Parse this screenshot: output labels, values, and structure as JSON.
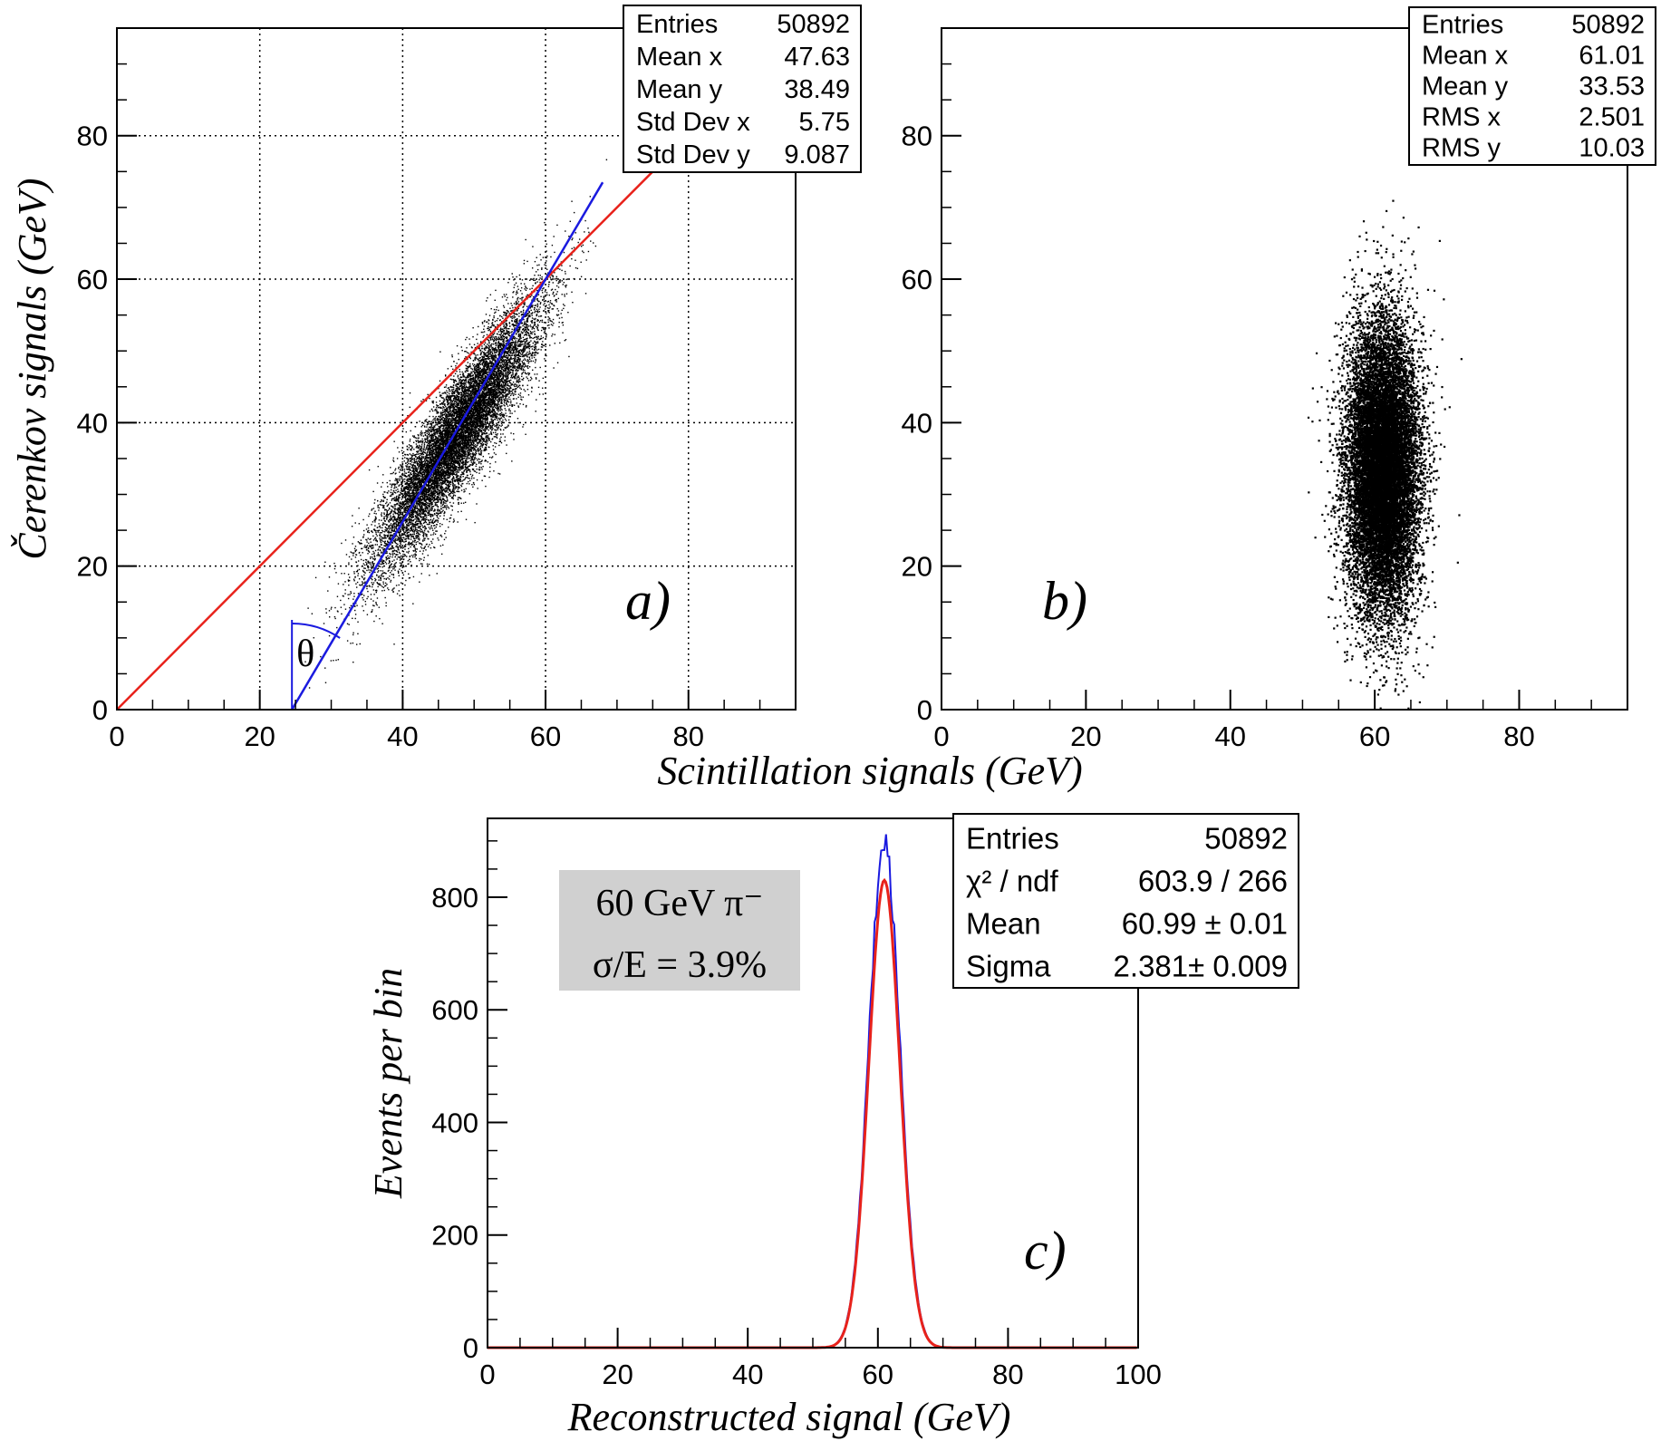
{
  "chart_data": [
    {
      "type": "scatter",
      "panel_label": "a)",
      "xlabel": "Scintillation signals (GeV)",
      "ylabel": "Čerenkov signals (GeV)",
      "xlim": [
        0,
        95
      ],
      "ylim": [
        0,
        95
      ],
      "x_ticks": [
        0,
        20,
        40,
        60,
        80
      ],
      "y_ticks": [
        0,
        20,
        40,
        60,
        80
      ],
      "grid": true,
      "stats": [
        {
          "label": "Entries",
          "value": "50892"
        },
        {
          "label": "Mean x",
          "value": "47.63"
        },
        {
          "label": "Mean y",
          "value": "38.49"
        },
        {
          "label": "Std Dev x",
          "value": "5.75"
        },
        {
          "label": "Std Dev y",
          "value": "9.087"
        }
      ],
      "lines": [
        {
          "color": "#e8221b",
          "x": [
            0,
            78
          ],
          "y": [
            0,
            78
          ]
        },
        {
          "color": "#1a1adf",
          "x": [
            24.5,
            68
          ],
          "y": [
            0,
            73.5
          ]
        }
      ],
      "angle_marker": {
        "text": "θ",
        "color": "#1a1adf",
        "x": 24.5,
        "y_top": 12.5
      },
      "distribution": {
        "center_x": 47.63,
        "center_y": 38.49,
        "std_x": 5.75,
        "std_y": 9.087,
        "correlation": 0.9
      }
    },
    {
      "type": "scatter",
      "panel_label": "b)",
      "xlim": [
        0,
        95
      ],
      "ylim": [
        0,
        95
      ],
      "x_ticks": [
        0,
        20,
        40,
        60,
        80
      ],
      "y_ticks": [
        0,
        20,
        40,
        60,
        80
      ],
      "grid": false,
      "stats": [
        {
          "label": "Entries",
          "value": "50892"
        },
        {
          "label": "Mean x",
          "value": "61.01"
        },
        {
          "label": "Mean y",
          "value": "33.53"
        },
        {
          "label": "RMS x",
          "value": "2.501"
        },
        {
          "label": "RMS y",
          "value": "10.03"
        }
      ],
      "distribution": {
        "center_x": 61.01,
        "center_y": 33.53,
        "std_x": 2.501,
        "std_y": 10.03,
        "correlation": 0.0
      }
    },
    {
      "type": "line",
      "panel_label": "c)",
      "xlabel": "Reconstructed signal (GeV)",
      "ylabel": "Events per bin",
      "xlim": [
        0,
        100
      ],
      "ylim": [
        0,
        940
      ],
      "x_ticks": [
        0,
        20,
        40,
        60,
        80,
        100
      ],
      "y_ticks": [
        0,
        200,
        400,
        600,
        800
      ],
      "grid": false,
      "stats": [
        {
          "label": "Entries",
          "value": "50892"
        },
        {
          "label": "χ² / ndf",
          "value": "603.9 / 266"
        },
        {
          "label": "Mean",
          "value": "60.99 ± 0.01"
        },
        {
          "label": "Sigma",
          "value": "2.381± 0.009"
        }
      ],
      "info_box": {
        "line1": "60 GeV π⁻",
        "line2": "σ/E = 3.9%"
      },
      "series": [
        {
          "kind": "histogram",
          "color": "#1a1adf",
          "mean": 60.99,
          "sigma": 2.381,
          "peak": 900
        },
        {
          "kind": "gaussian-fit",
          "color": "#e8221b",
          "mean": 60.99,
          "sigma": 2.381,
          "peak": 830
        }
      ]
    }
  ],
  "colors": {
    "points": "#000000",
    "grid": "#000000",
    "fit_red": "#e8221b",
    "data_blue": "#1a1adf",
    "info_bg": "#d0d0d0"
  }
}
